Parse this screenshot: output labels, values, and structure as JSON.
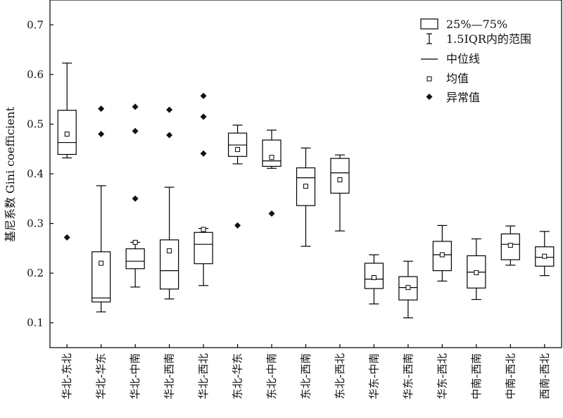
{
  "chart_data": {
    "type": "box",
    "ylabel": "基尼系数 Gini coefficient",
    "xlabel": "",
    "ylim": [
      0.05,
      0.75
    ],
    "yticks": [
      "0.1",
      "0.2",
      "0.3",
      "0.4",
      "0.5",
      "0.6",
      "0.7"
    ],
    "grid": false,
    "legend_position": "top-right",
    "legend": {
      "box": "25%—75%",
      "whisker": "1.5IQR内的范围",
      "median": "中位线",
      "mean": "均值",
      "outlier": "异常值"
    },
    "categories": [
      "华北-东北",
      "华北-华东",
      "华北-中南",
      "华北-西南",
      "华北-西北",
      "东北-华东",
      "东北-中南",
      "东北-西南",
      "东北-西北",
      "华东-中南",
      "华东-西南",
      "华东-西北",
      "中南-西南",
      "中南-西北",
      "西南-西北"
    ],
    "boxes": [
      {
        "min": 0.432,
        "q1": 0.439,
        "median": 0.463,
        "q3": 0.528,
        "max": 0.623,
        "mean": 0.48,
        "outliers": [
          0.272
        ]
      },
      {
        "min": 0.122,
        "q1": 0.142,
        "median": 0.15,
        "q3": 0.243,
        "max": 0.376,
        "mean": 0.22,
        "outliers": [
          0.531,
          0.48
        ]
      },
      {
        "min": 0.172,
        "q1": 0.209,
        "median": 0.224,
        "q3": 0.249,
        "max": 0.262,
        "mean": 0.262,
        "outliers": [
          0.535,
          0.486,
          0.35
        ]
      },
      {
        "min": 0.148,
        "q1": 0.168,
        "median": 0.205,
        "q3": 0.267,
        "max": 0.373,
        "mean": 0.245,
        "outliers": [
          0.529,
          0.478
        ]
      },
      {
        "min": 0.175,
        "q1": 0.219,
        "median": 0.258,
        "q3": 0.282,
        "max": 0.29,
        "mean": 0.288,
        "outliers": [
          0.557,
          0.515,
          0.441
        ]
      },
      {
        "min": 0.42,
        "q1": 0.435,
        "median": 0.458,
        "q3": 0.482,
        "max": 0.498,
        "mean": 0.449,
        "outliers": [
          0.296
        ]
      },
      {
        "min": 0.411,
        "q1": 0.415,
        "median": 0.426,
        "q3": 0.468,
        "max": 0.488,
        "mean": 0.433,
        "outliers": [
          0.32
        ]
      },
      {
        "min": 0.254,
        "q1": 0.336,
        "median": 0.392,
        "q3": 0.412,
        "max": 0.452,
        "mean": 0.375,
        "outliers": []
      },
      {
        "min": 0.285,
        "q1": 0.361,
        "median": 0.402,
        "q3": 0.431,
        "max": 0.438,
        "mean": 0.388,
        "outliers": []
      },
      {
        "min": 0.138,
        "q1": 0.169,
        "median": 0.188,
        "q3": 0.22,
        "max": 0.237,
        "mean": 0.191,
        "outliers": []
      },
      {
        "min": 0.11,
        "q1": 0.146,
        "median": 0.171,
        "q3": 0.193,
        "max": 0.224,
        "mean": 0.171,
        "outliers": []
      },
      {
        "min": 0.184,
        "q1": 0.205,
        "median": 0.237,
        "q3": 0.264,
        "max": 0.296,
        "mean": 0.237,
        "outliers": []
      },
      {
        "min": 0.147,
        "q1": 0.17,
        "median": 0.202,
        "q3": 0.235,
        "max": 0.269,
        "mean": 0.201,
        "outliers": []
      },
      {
        "min": 0.216,
        "q1": 0.227,
        "median": 0.258,
        "q3": 0.279,
        "max": 0.295,
        "mean": 0.256,
        "outliers": []
      },
      {
        "min": 0.195,
        "q1": 0.214,
        "median": 0.232,
        "q3": 0.253,
        "max": 0.284,
        "mean": 0.234,
        "outliers": []
      }
    ]
  }
}
